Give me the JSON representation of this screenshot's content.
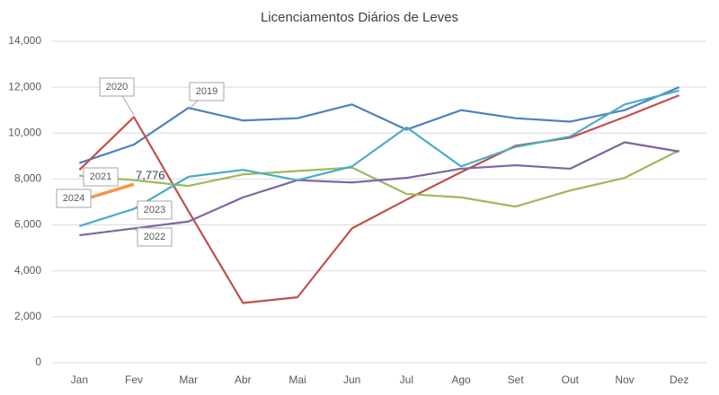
{
  "chart_data": {
    "type": "line",
    "title": "Licenciamentos Diários de Leves",
    "categories": [
      "Jan",
      "Fev",
      "Mar",
      "Abr",
      "Mai",
      "Jun",
      "Jul",
      "Ago",
      "Set",
      "Out",
      "Nov",
      "Dez"
    ],
    "series": [
      {
        "name": "2019",
        "color": "#4f81bd",
        "values": [
          8700,
          9500,
          11100,
          10550,
          10650,
          11250,
          10150,
          11000,
          10650,
          10500,
          11000,
          12000
        ]
      },
      {
        "name": "2020",
        "color": "#c0504d",
        "values": [
          8400,
          10700,
          6600,
          2600,
          2850,
          5850,
          7100,
          8300,
          9450,
          9800,
          10700,
          11650
        ]
      },
      {
        "name": "2021",
        "color": "#9bbb59",
        "values": [
          8150,
          7950,
          7700,
          8200,
          8350,
          8500,
          7350,
          7200,
          6800,
          7500,
          8050,
          9250
        ]
      },
      {
        "name": "2022",
        "color": "#8064a2",
        "values": [
          5550,
          5850,
          6150,
          7200,
          7950,
          7850,
          8050,
          8450,
          8600,
          8450,
          9600,
          9200
        ]
      },
      {
        "name": "2023",
        "color": "#4bacc6",
        "values": [
          5950,
          6700,
          8100,
          8400,
          7950,
          8550,
          10250,
          8550,
          9400,
          9850,
          11250,
          11850
        ]
      },
      {
        "name": "2024",
        "color": "#f79646",
        "values": [
          7050,
          7776,
          null,
          null,
          null,
          null,
          null,
          null,
          null,
          null,
          null,
          null
        ],
        "value_labels": [
          null,
          "7,776",
          null,
          null,
          null,
          null,
          null,
          null,
          null,
          null,
          null,
          null
        ]
      }
    ],
    "ylim": [
      0,
      14000
    ],
    "yticks": [
      0,
      {
        "value": 2000,
        "label": "2,000"
      },
      {
        "value": 4000,
        "label": "4,000"
      },
      {
        "value": 6000,
        "label": "6,000"
      },
      {
        "value": 8000,
        "label": "8,000"
      },
      {
        "value": 10000,
        "label": "10,000"
      },
      {
        "value": 12000,
        "label": "12,000"
      },
      {
        "value": 14000,
        "label": "14,000"
      }
    ],
    "grid": true
  }
}
